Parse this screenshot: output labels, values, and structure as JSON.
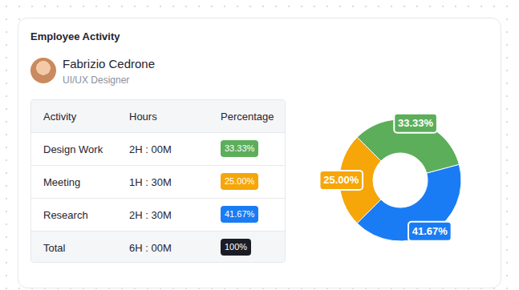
{
  "title": "Employee Activity",
  "profile": {
    "name": "Fabrizio Cedrone",
    "role": "UI/UX Designer"
  },
  "table": {
    "columns": [
      "Activity",
      "Hours",
      "Percentage"
    ],
    "rows": [
      [
        "Design Work",
        "2H : 00M",
        "33.33%"
      ],
      [
        "Meeting",
        "1H : 30M",
        "25.00%"
      ],
      [
        "Research",
        "2H : 30M",
        "41.67%"
      ],
      [
        "Total",
        "6H : 00M",
        "100%"
      ]
    ]
  },
  "chart_data": {
    "type": "pie",
    "categories": [
      "Design Work",
      "Meeting",
      "Research"
    ],
    "values": [
      33.33,
      25,
      41.67
    ],
    "value_labels": [
      "33.33%",
      "25.00%",
      "41.67%"
    ],
    "colors": [
      "#5cae5a",
      "#f6a609",
      "#1a7cf4"
    ],
    "data_labels": true
  }
}
